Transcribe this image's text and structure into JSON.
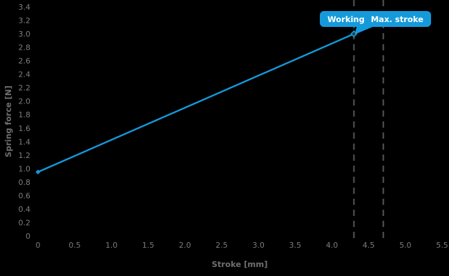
{
  "colors": {
    "background": "#000000",
    "accent_blue": "#149adb",
    "axis_tick_text": "#7d7d7d",
    "axis_title_text": "#6f6f6f",
    "dashed_line": "#4a4a4a",
    "tooltip_text": "#ffffff",
    "end_marker_fill": "#303030"
  },
  "annotation": {
    "working_label": "Working",
    "max_stroke_label": "Max. stroke"
  },
  "chart_data": {
    "type": "line",
    "title": "",
    "xlabel": "Stroke [mm]",
    "ylabel": "Spring force [N]",
    "xlim": [
      0,
      5.5
    ],
    "ylim": [
      0,
      3.4
    ],
    "grid": false,
    "legend": "none",
    "x_ticks": [
      {
        "value": 0,
        "label": "0"
      },
      {
        "value": 0.5,
        "label": "0.5"
      },
      {
        "value": 1.0,
        "label": "1.0"
      },
      {
        "value": 1.5,
        "label": "1.5"
      },
      {
        "value": 2.0,
        "label": "2.0"
      },
      {
        "value": 2.5,
        "label": "2.5"
      },
      {
        "value": 3.0,
        "label": "3.0"
      },
      {
        "value": 3.5,
        "label": "3.5"
      },
      {
        "value": 4.0,
        "label": "4.0"
      },
      {
        "value": 4.5,
        "label": "4.5"
      },
      {
        "value": 5.0,
        "label": "5.0"
      },
      {
        "value": 5.5,
        "label": "5.5"
      }
    ],
    "y_ticks": [
      {
        "value": 0,
        "label": "0"
      },
      {
        "value": 0.2,
        "label": "0.2"
      },
      {
        "value": 0.4,
        "label": "0.4"
      },
      {
        "value": 0.6,
        "label": "0.6"
      },
      {
        "value": 0.8,
        "label": "0.8"
      },
      {
        "value": 1.0,
        "label": "1.0"
      },
      {
        "value": 1.2,
        "label": "1.2"
      },
      {
        "value": 1.4,
        "label": "1.4"
      },
      {
        "value": 1.6,
        "label": "1.6"
      },
      {
        "value": 1.8,
        "label": "1.8"
      },
      {
        "value": 2.0,
        "label": "2.0"
      },
      {
        "value": 2.2,
        "label": "2.2"
      },
      {
        "value": 2.4,
        "label": "2.4"
      },
      {
        "value": 2.6,
        "label": "2.6"
      },
      {
        "value": 2.8,
        "label": "2.8"
      },
      {
        "value": 3.0,
        "label": "3.0"
      },
      {
        "value": 3.2,
        "label": "3.2"
      },
      {
        "value": 3.4,
        "label": "3.4"
      }
    ],
    "series": [
      {
        "name": "Spring force",
        "color": "#149adb",
        "points": [
          {
            "x": 0,
            "y": 0.95
          },
          {
            "x": 4.3,
            "y": 3.0
          }
        ]
      }
    ],
    "reference_lines": [
      {
        "name": "Working",
        "x": 4.3,
        "style": "dashed"
      },
      {
        "name": "Max. stroke",
        "x": 4.7,
        "style": "dashed"
      }
    ]
  }
}
